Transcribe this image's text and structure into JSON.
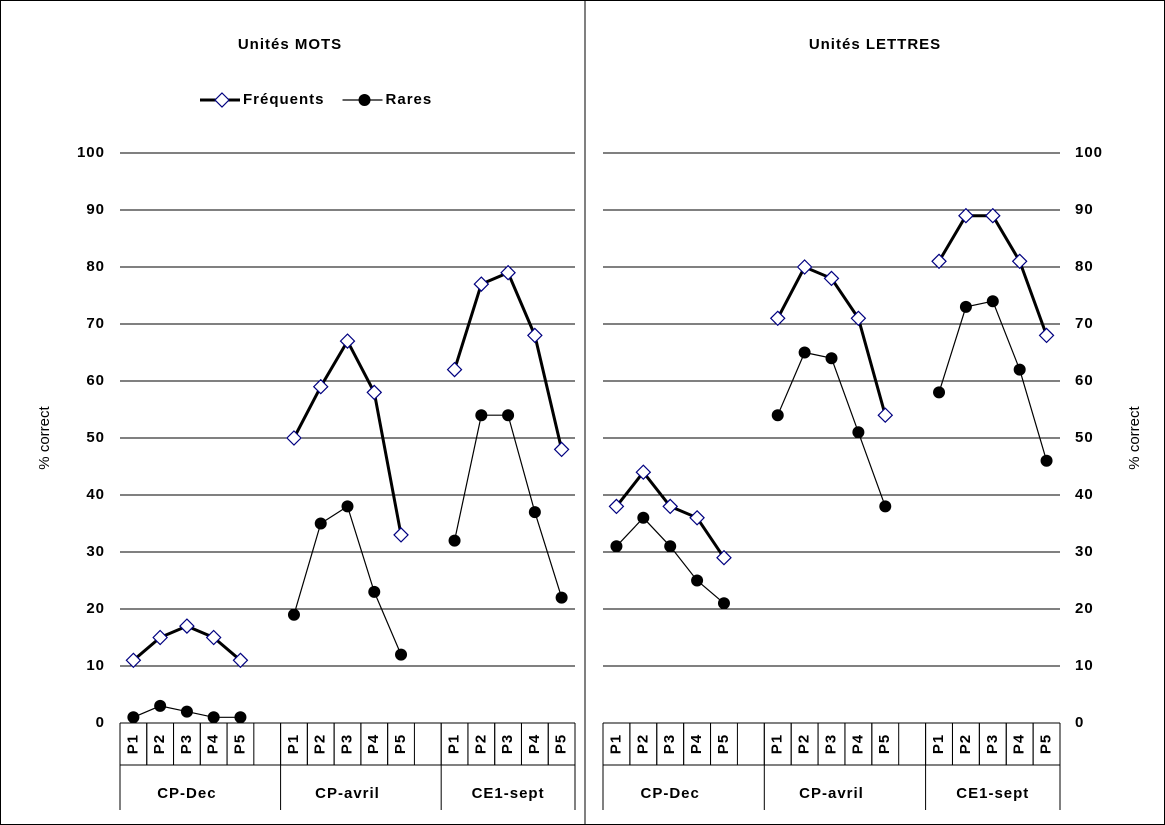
{
  "chart_data": [
    {
      "type": "line",
      "title": "Unités MOTS",
      "ylabel": "% correct",
      "categories": [
        "P1",
        "P2",
        "P3",
        "P4",
        "P5",
        null,
        "P1",
        "P2",
        "P3",
        "P4",
        "P5",
        null,
        "P1",
        "P2",
        "P3",
        "P4",
        "P5"
      ],
      "group_labels": [
        "CP-Dec",
        "CP-avril",
        "CE1-sept"
      ],
      "ylim": [
        0,
        100
      ],
      "yticks": [
        0,
        10,
        20,
        30,
        40,
        50,
        60,
        70,
        80,
        90,
        100
      ],
      "grid": true,
      "yaxis_side": "left",
      "legend": "top",
      "series": [
        {
          "name": "Fréquents",
          "color": "#000000",
          "marker": "diamond",
          "values": [
            11,
            15,
            17,
            15,
            11,
            null,
            50,
            59,
            67,
            58,
            33,
            null,
            62,
            77,
            79,
            68,
            48
          ]
        },
        {
          "name": "Rares",
          "color": "#000000",
          "marker": "circle",
          "values": [
            1,
            3,
            2,
            1,
            1,
            null,
            19,
            35,
            38,
            23,
            12,
            null,
            32,
            54,
            54,
            37,
            22
          ]
        }
      ]
    },
    {
      "type": "line",
      "title": "Unités LETTRES",
      "ylabel": "% correct",
      "categories": [
        "P1",
        "P2",
        "P3",
        "P4",
        "P5",
        null,
        "P1",
        "P2",
        "P3",
        "P4",
        "P5",
        null,
        "P1",
        "P2",
        "P3",
        "P4",
        "P5"
      ],
      "group_labels": [
        "CP-Dec",
        "CP-avril",
        "CE1-sept"
      ],
      "ylim": [
        0,
        100
      ],
      "yticks": [
        0,
        10,
        20,
        30,
        40,
        50,
        60,
        70,
        80,
        90,
        100
      ],
      "grid": true,
      "yaxis_side": "right",
      "series": [
        {
          "color": "#000000",
          "marker": "diamond",
          "values": [
            38,
            44,
            38,
            36,
            29,
            null,
            71,
            80,
            78,
            71,
            54,
            null,
            81,
            89,
            89,
            81,
            68
          ]
        },
        {
          "color": "#000000",
          "marker": "circle",
          "values": [
            31,
            36,
            31,
            25,
            21,
            null,
            54,
            65,
            64,
            51,
            38,
            null,
            58,
            73,
            74,
            62,
            46
          ]
        }
      ]
    }
  ]
}
